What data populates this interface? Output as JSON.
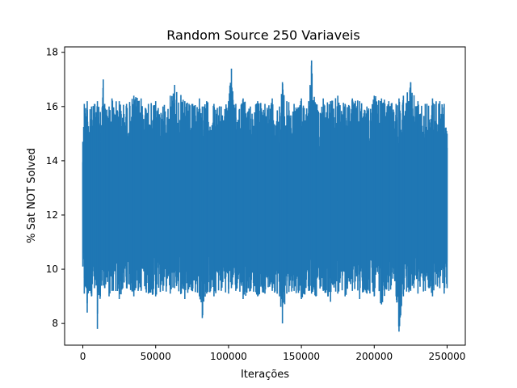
{
  "chart_data": {
    "type": "line",
    "title": "Random Source 250 Variaveis",
    "xlabel": "Iterações",
    "ylabel": "% Sat NOT Solved",
    "xlim": [
      -12500,
      262500
    ],
    "ylim": [
      7.2,
      18.2
    ],
    "xticks": [
      0,
      50000,
      100000,
      150000,
      200000,
      250000
    ],
    "yticks": [
      8,
      10,
      12,
      14,
      16,
      18
    ],
    "grid": false,
    "color": "#1f77b4",
    "series": [
      {
        "x": [
          0,
          1000,
          3000,
          5000,
          6000,
          8000,
          10000,
          12000,
          14000,
          15000,
          18000,
          20000,
          25000,
          30000,
          35000,
          40000,
          45000,
          50000,
          55000,
          60000,
          63000,
          70000,
          75000,
          80000,
          82000,
          85000,
          90000,
          95000,
          100000,
          102000,
          105000,
          110000,
          115000,
          120000,
          125000,
          130000,
          135000,
          137000,
          140000,
          145000,
          150000,
          155000,
          157000,
          160000,
          165000,
          170000,
          175000,
          180000,
          185000,
          190000,
          195000,
          200000,
          205000,
          210000,
          215000,
          217000,
          220000,
          225000,
          230000,
          235000,
          240000,
          245000,
          248000,
          250000
        ],
        "min": [
          10.1,
          9.1,
          8.4,
          9.2,
          9.0,
          9.3,
          7.8,
          9.0,
          9.4,
          9.3,
          9.0,
          9.2,
          8.9,
          9.3,
          9.0,
          9.2,
          9.1,
          9.0,
          9.2,
          9.1,
          9.3,
          8.9,
          9.2,
          9.0,
          8.2,
          9.1,
          9.0,
          9.2,
          9.1,
          9.3,
          9.2,
          8.9,
          9.2,
          9.0,
          9.1,
          9.2,
          9.0,
          8.0,
          9.1,
          9.2,
          8.9,
          9.2,
          9.1,
          9.0,
          9.2,
          8.8,
          9.1,
          9.0,
          9.2,
          8.9,
          9.1,
          9.0,
          8.7,
          9.2,
          9.0,
          7.7,
          9.0,
          9.2,
          9.1,
          9.2,
          9.0,
          9.3,
          9.1,
          9.3
        ],
        "max": [
          14.7,
          16.1,
          16.2,
          15.9,
          16.0,
          16.1,
          16.2,
          15.8,
          17.0,
          16.1,
          16.0,
          16.3,
          16.2,
          16.1,
          16.4,
          16.3,
          16.1,
          16.2,
          16.0,
          16.4,
          16.8,
          16.2,
          16.1,
          16.3,
          16.0,
          16.2,
          16.1,
          16.0,
          16.2,
          17.4,
          16.1,
          16.3,
          16.0,
          16.2,
          16.1,
          16.3,
          16.0,
          16.9,
          16.2,
          16.1,
          16.3,
          16.2,
          17.7,
          16.1,
          16.3,
          16.2,
          16.4,
          16.1,
          16.3,
          16.2,
          16.0,
          16.4,
          16.3,
          16.2,
          16.1,
          16.3,
          16.4,
          16.9,
          16.2,
          16.1,
          16.3,
          16.2,
          16.1,
          15.0
        ]
      }
    ]
  }
}
